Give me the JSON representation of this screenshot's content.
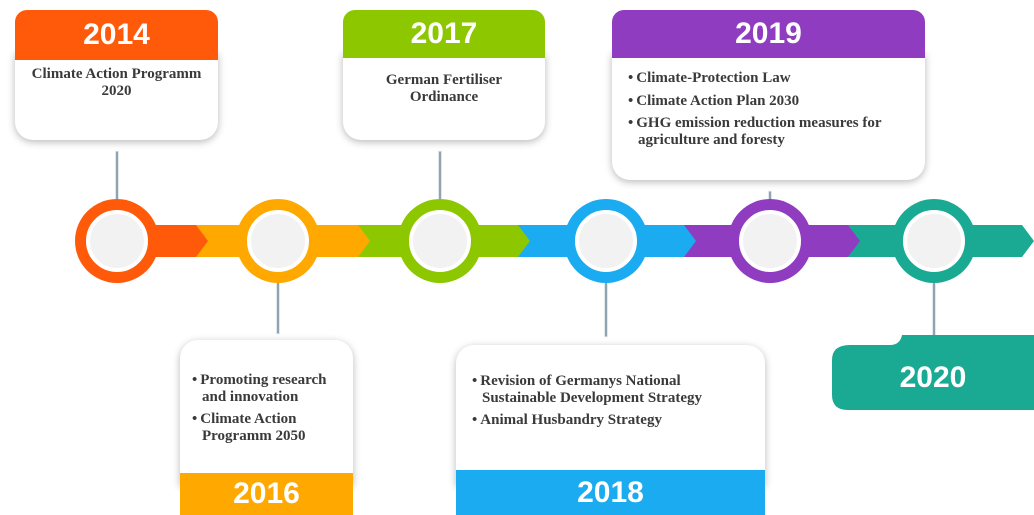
{
  "events": [
    {
      "year": "2014",
      "items": [
        "Climate Action Programm 2020"
      ]
    },
    {
      "year": "2016",
      "items": [
        "Promoting research and innovation",
        "Climate Action Programm 2050"
      ]
    },
    {
      "year": "2017",
      "items": [
        "German Fertiliser Ordinance"
      ]
    },
    {
      "year": "2018",
      "items": [
        "Revision of Germanys National Sustainable Development Strategy",
        "Animal Husbandry Strategy"
      ]
    },
    {
      "year": "2019",
      "items": [
        "Climate-Protection Law",
        "Climate Action Plan 2030",
        "GHG emission reduction measures for agriculture and foresty"
      ]
    },
    {
      "year": "2020"
    }
  ]
}
